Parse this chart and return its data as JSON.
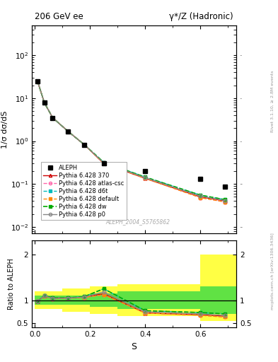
{
  "title_left": "206 GeV ee",
  "title_right": "γ*/Z (Hadronic)",
  "ylabel_main": "1/σ dσ/dS",
  "ylabel_ratio": "Ratio to ALEPH",
  "xlabel": "S",
  "right_label_top": "Rivet 3.1.10, ≥ 2.8M events",
  "right_label_bottom": "mcplots.cern.ch [arXiv:1306.3436]",
  "watermark": "ALEPH_2004_S5765862",
  "x_data": [
    0.01,
    0.035,
    0.065,
    0.12,
    0.18,
    0.25,
    0.4,
    0.6,
    0.69
  ],
  "aleph_y": [
    25.0,
    7.8,
    3.5,
    1.7,
    0.82,
    0.3,
    0.2,
    0.13,
    0.085
  ],
  "pythia_370_y": [
    25.0,
    7.8,
    3.5,
    1.7,
    0.82,
    0.3,
    0.135,
    0.05,
    0.04
  ],
  "pythia_atlascsc_y": [
    25.0,
    7.8,
    3.5,
    1.7,
    0.82,
    0.3,
    0.135,
    0.048,
    0.038
  ],
  "pythia_d6t_y": [
    25.0,
    7.8,
    3.5,
    1.7,
    0.82,
    0.32,
    0.145,
    0.055,
    0.043
  ],
  "pythia_default_y": [
    25.0,
    7.8,
    3.5,
    1.7,
    0.82,
    0.3,
    0.135,
    0.048,
    0.038
  ],
  "pythia_dw_y": [
    25.0,
    7.8,
    3.5,
    1.7,
    0.82,
    0.32,
    0.145,
    0.055,
    0.043
  ],
  "pythia_p0_y": [
    25.0,
    7.8,
    3.5,
    1.7,
    0.82,
    0.31,
    0.14,
    0.052,
    0.041
  ],
  "ratio_x": [
    0.01,
    0.035,
    0.065,
    0.12,
    0.18,
    0.25,
    0.4,
    0.6,
    0.69
  ],
  "ratio_370": [
    0.97,
    1.1,
    1.05,
    1.05,
    1.07,
    1.14,
    0.72,
    0.68,
    0.65
  ],
  "ratio_atlascsc": [
    0.97,
    1.09,
    1.03,
    1.04,
    1.06,
    1.12,
    0.72,
    0.67,
    0.63
  ],
  "ratio_d6t": [
    0.97,
    1.1,
    1.05,
    1.05,
    1.08,
    1.25,
    0.77,
    0.73,
    0.7
  ],
  "ratio_default": [
    0.97,
    1.09,
    1.03,
    1.04,
    1.06,
    1.12,
    0.72,
    0.67,
    0.63
  ],
  "ratio_dw": [
    0.97,
    1.1,
    1.05,
    1.05,
    1.08,
    1.25,
    0.77,
    0.73,
    0.7
  ],
  "ratio_p0": [
    0.97,
    1.095,
    1.04,
    1.045,
    1.07,
    1.18,
    0.745,
    0.7,
    0.665
  ],
  "band_x_edges": [
    0.0,
    0.05,
    0.1,
    0.2,
    0.3,
    0.6,
    0.75
  ],
  "band_green_lo": [
    0.9,
    0.9,
    0.9,
    0.85,
    0.8,
    0.7,
    0.7
  ],
  "band_green_hi": [
    1.1,
    1.1,
    1.1,
    1.15,
    1.2,
    1.3,
    1.3
  ],
  "band_yellow_lo": [
    0.8,
    0.8,
    0.75,
    0.7,
    0.65,
    0.55,
    0.55
  ],
  "band_yellow_hi": [
    1.2,
    1.2,
    1.25,
    1.3,
    1.35,
    2.0,
    2.0
  ],
  "color_aleph": "#000000",
  "color_370": "#cc0000",
  "color_atlascsc": "#ff66aa",
  "color_d6t": "#00bbbb",
  "color_default": "#ff8800",
  "color_dw": "#00aa00",
  "color_p0": "#888888",
  "color_band_green": "#44dd44",
  "color_band_yellow": "#ffff44",
  "ylim_main": [
    0.007,
    500
  ],
  "ylim_ratio": [
    0.4,
    2.3
  ],
  "xlim": [
    -0.01,
    0.73
  ]
}
